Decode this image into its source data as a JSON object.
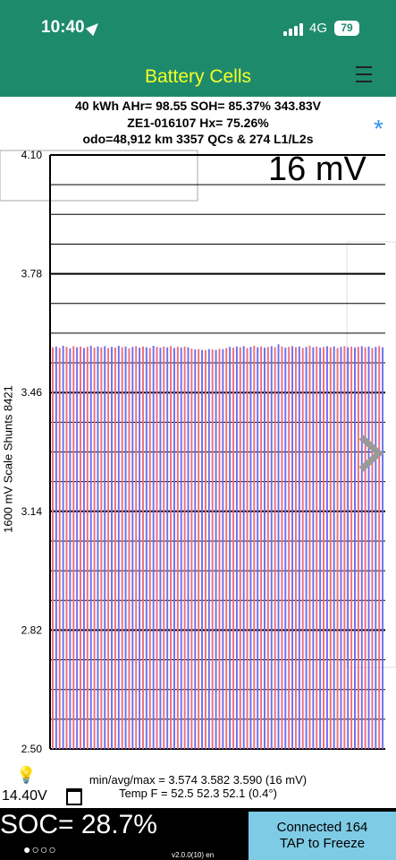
{
  "status_bar": {
    "time": "10:40",
    "network": "4G",
    "battery": "79"
  },
  "header": {
    "title": "Battery Cells"
  },
  "info": {
    "line1": "40 kWh  AHr= 98.55  SOH= 85.37%   343.83V",
    "line2": "ZE1-016107   Hx= 75.26%",
    "line3": "odo=48,912 km 3357 QCs & 274 L1/L2s"
  },
  "chart_data": {
    "type": "bar",
    "ylabel": "1600 mV Scale   Shunts 8421",
    "ylim": [
      2.5,
      4.1
    ],
    "y_ticks": [
      "4.10",
      "3.78",
      "3.46",
      "3.14",
      "2.82",
      "2.50"
    ],
    "x_ticks": [
      "1",
      "10",
      "20",
      "30",
      "40",
      "50",
      "60",
      "70",
      "80",
      "90",
      "96"
    ],
    "cell_count": 96,
    "values": [
      3.582,
      3.584,
      3.58,
      3.586,
      3.583,
      3.579,
      3.585,
      3.582,
      3.584,
      3.58,
      3.583,
      3.586,
      3.581,
      3.584,
      3.582,
      3.585,
      3.58,
      3.583,
      3.581,
      3.586,
      3.582,
      3.584,
      3.579,
      3.583,
      3.585,
      3.581,
      3.584,
      3.582,
      3.58,
      3.586,
      3.583,
      3.581,
      3.584,
      3.582,
      3.585,
      3.58,
      3.583,
      3.581,
      3.584,
      3.582,
      3.578,
      3.576,
      3.577,
      3.575,
      3.574,
      3.577,
      3.576,
      3.575,
      3.578,
      3.577,
      3.58,
      3.583,
      3.581,
      3.584,
      3.582,
      3.585,
      3.58,
      3.583,
      3.586,
      3.582,
      3.584,
      3.581,
      3.583,
      3.585,
      3.582,
      3.59,
      3.584,
      3.581,
      3.583,
      3.585,
      3.582,
      3.584,
      3.58,
      3.583,
      3.586,
      3.582,
      3.584,
      3.581,
      3.583,
      3.585,
      3.582,
      3.584,
      3.58,
      3.583,
      3.585,
      3.582,
      3.584,
      3.581,
      3.583,
      3.585,
      3.582,
      3.584,
      3.58,
      3.583,
      3.585,
      3.582
    ],
    "colors": {
      "odd": "#ee6e7a",
      "even": "#6e6ef0"
    }
  },
  "spread_label": "16 mV",
  "stats": {
    "line1": "min/avg/max = 3.574  3.582  3.590  (16 mV)",
    "line2": "Temp F = 52.5  52.3  52.1  (0.4°)"
  },
  "bottom": {
    "pack_voltage": "14.40V",
    "soc": "SOC= 28.7%",
    "dots": "●○○○",
    "version": "v2.0.0(10) en",
    "connect_line1": "Connected 164",
    "connect_line2": "TAP to Freeze"
  }
}
